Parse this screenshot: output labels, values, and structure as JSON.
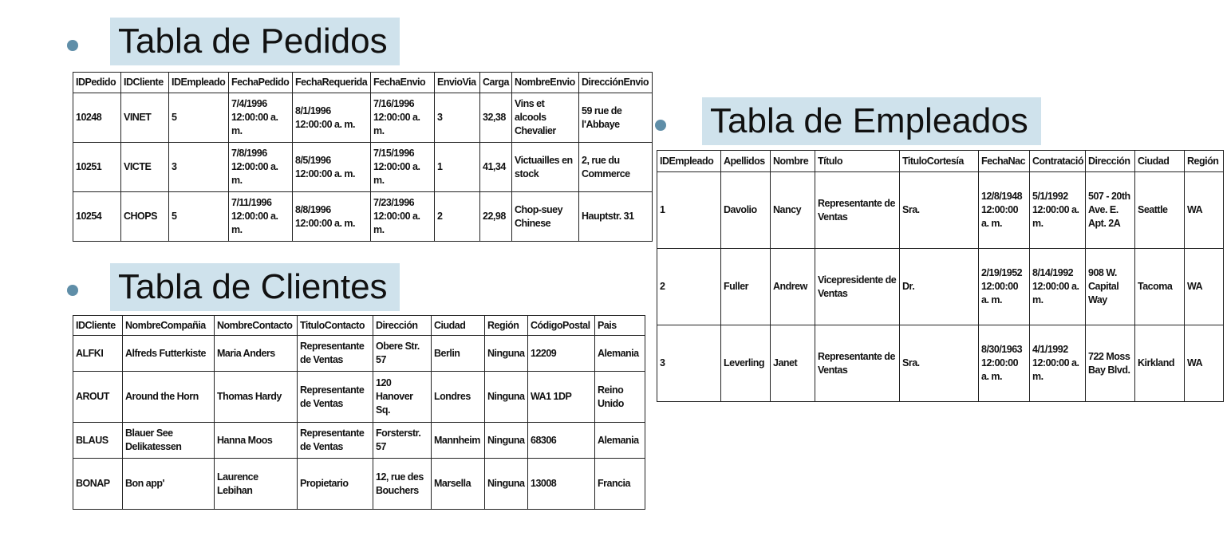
{
  "sections": [
    {
      "title": "Tabla de Pedidos",
      "table": {
        "headers": [
          "IDPedido",
          "IDCliente",
          "IDEmpleado",
          "FechaPedido",
          "FechaRequerida",
          "FechaEnvio",
          "EnvioVia",
          "Carga",
          "NombreEnvio",
          "DirecciónEnvio"
        ],
        "rows": [
          [
            "10248",
            "VINET",
            "5",
            "7/4/1996 12:00:00 a. m.",
            "8/1/1996 12:00:00 a. m.",
            "7/16/1996 12:00:00 a. m.",
            "3",
            "32,38",
            "Vins et alcools Chevalier",
            "59 rue de l'Abbaye"
          ],
          [
            "10251",
            "VICTE",
            "3",
            "7/8/1996 12:00:00 a. m.",
            "8/5/1996 12:00:00 a. m.",
            "7/15/1996 12:00:00 a. m.",
            "1",
            "41,34",
            "Victuailles en stock",
            "2, rue du Commerce"
          ],
          [
            "10254",
            "CHOPS",
            "5",
            "7/11/1996 12:00:00 a. m.",
            "8/8/1996 12:00:00 a. m.",
            "7/23/1996 12:00:00 a. m.",
            "2",
            "22,98",
            "Chop-suey Chinese",
            "Hauptstr. 31"
          ]
        ]
      }
    },
    {
      "title": "Tabla de Clientes",
      "table": {
        "headers": [
          "IDCliente",
          "NombreCompañia",
          "NombreContacto",
          "TituloContacto",
          "Dirección",
          "Ciudad",
          "Región",
          "CódigoPostal",
          "Pais"
        ],
        "rows": [
          [
            "ALFKI",
            "Alfreds Futterkiste",
            "Maria Anders",
            "Representante de Ventas",
            "Obere Str. 57",
            "Berlin",
            "Ninguna",
            "12209",
            "Alemania"
          ],
          [
            "AROUT",
            "Around the Horn",
            "Thomas Hardy",
            "Representante de Ventas",
            "120 Hanover Sq.",
            "Londres",
            "Ninguna",
            "WA1 1DP",
            "Reino Unido"
          ],
          [
            "BLAUS",
            "Blauer See Delikatessen",
            "Hanna Moos",
            "Representante de Ventas",
            "Forsterstr. 57",
            "Mannheim",
            "Ninguna",
            "68306",
            "Alemania"
          ],
          [
            "BONAP",
            "Bon app'",
            "Laurence Lebihan",
            "Propietario",
            "12, rue des Bouchers",
            "Marsella",
            "Ninguna",
            "13008",
            "Francia"
          ]
        ]
      }
    },
    {
      "title": "Tabla de Empleados",
      "table": {
        "headers": [
          "IDEmpleado",
          "Apellidos",
          "Nombre",
          "Título",
          "TituloCortesía",
          "FechaNac",
          "Contratació",
          "Dirección",
          "Ciudad",
          "Región"
        ],
        "rows": [
          [
            "1",
            "Davolio",
            "Nancy",
            "Representante de Ventas",
            "Sra.",
            "12/8/1948 12:00:00 a. m.",
            "5/1/1992 12:00:00 a. m.",
            "507 - 20th Ave. E. Apt. 2A",
            "Seattle",
            "WA"
          ],
          [
            "2",
            "Fuller",
            "Andrew",
            "Vicepresidente de Ventas",
            "Dr.",
            "2/19/1952 12:00:00 a. m.",
            "8/14/1992 12:00:00 a. m.",
            "908 W. Capital Way",
            "Tacoma",
            "WA"
          ],
          [
            "3",
            "Leverling",
            "Janet",
            "Representante de Ventas",
            "Sra.",
            "8/30/1963 12:00:00 a. m.",
            "4/1/1992 12:00:00 a. m.",
            "722 Moss Bay Blvd.",
            "Kirkland",
            "WA"
          ]
        ]
      }
    }
  ]
}
